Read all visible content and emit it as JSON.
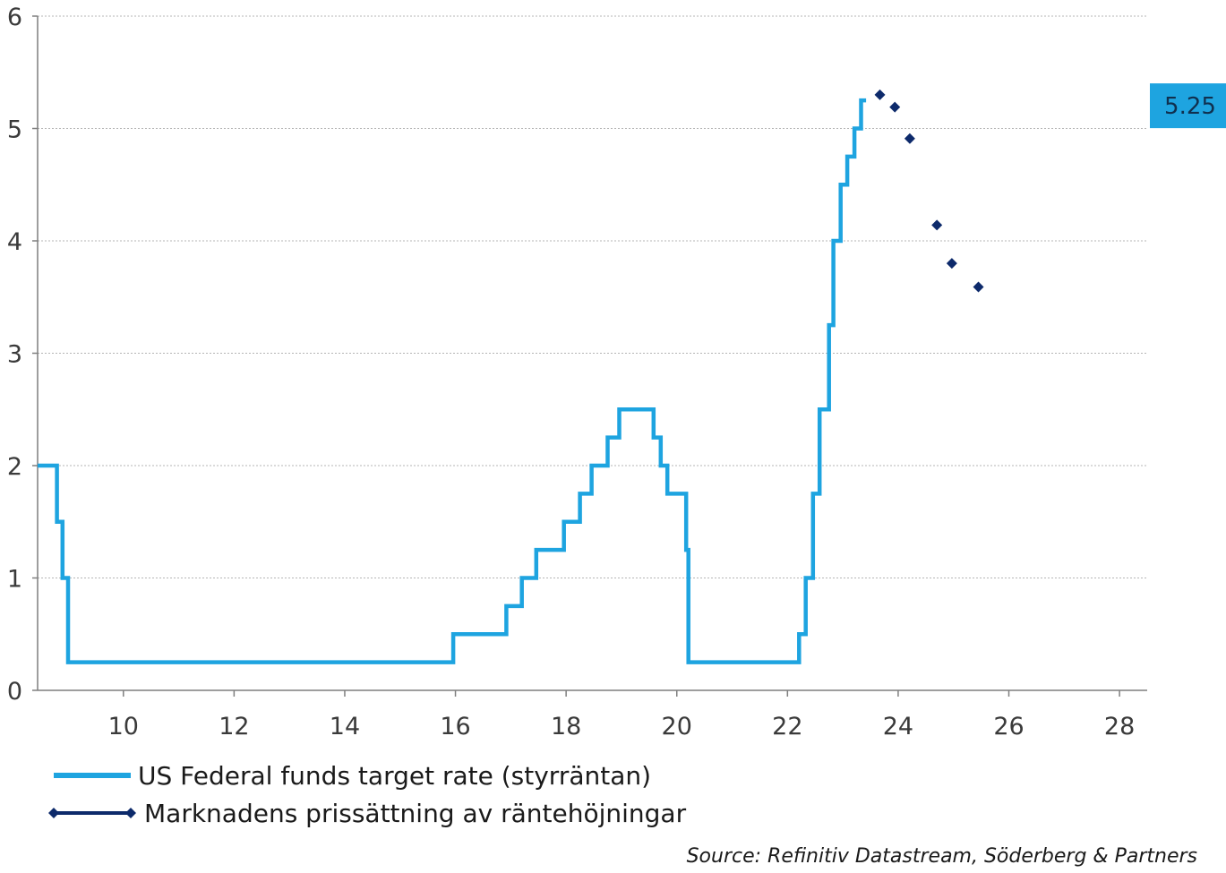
{
  "colors": {
    "rate": "#1ea4e0",
    "pricing": "#0d2a6b",
    "badge_bg": "#1ea4e0",
    "grid": "#b5b5b5",
    "axis": "#7f7f7f"
  },
  "chart_data": {
    "type": "line",
    "title": "",
    "xlabel": "",
    "ylabel": "",
    "xlim": [
      8.45,
      28.5
    ],
    "ylim": [
      0,
      6
    ],
    "x_ticks": [
      10,
      12,
      14,
      16,
      18,
      20,
      22,
      24,
      26,
      28
    ],
    "y_ticks": [
      0,
      1,
      2,
      3,
      4,
      5,
      6
    ],
    "x_tick_labels": [
      "10",
      "12",
      "14",
      "16",
      "18",
      "20",
      "22",
      "24",
      "26",
      "28"
    ],
    "y_tick_labels": [
      "0",
      "1",
      "2",
      "3",
      "4",
      "5",
      "6"
    ],
    "grid": "horizontal dotted",
    "legend_position": "bottom-left",
    "series": [
      {
        "name": "US Federal funds target rate (styrräntan)",
        "style": "step",
        "points": [
          [
            8.45,
            2.0
          ],
          [
            8.8,
            2.0
          ],
          [
            8.8,
            1.5
          ],
          [
            8.9,
            1.5
          ],
          [
            8.9,
            1.0
          ],
          [
            9.0,
            1.0
          ],
          [
            9.0,
            0.25
          ],
          [
            15.96,
            0.25
          ],
          [
            15.96,
            0.5
          ],
          [
            16.92,
            0.5
          ],
          [
            16.92,
            0.75
          ],
          [
            17.2,
            0.75
          ],
          [
            17.2,
            1.0
          ],
          [
            17.46,
            1.0
          ],
          [
            17.46,
            1.25
          ],
          [
            17.96,
            1.25
          ],
          [
            17.96,
            1.5
          ],
          [
            18.25,
            1.5
          ],
          [
            18.25,
            1.75
          ],
          [
            18.46,
            1.75
          ],
          [
            18.46,
            2.0
          ],
          [
            18.75,
            2.0
          ],
          [
            18.75,
            2.25
          ],
          [
            18.96,
            2.25
          ],
          [
            18.96,
            2.5
          ],
          [
            19.58,
            2.5
          ],
          [
            19.58,
            2.25
          ],
          [
            19.71,
            2.25
          ],
          [
            19.71,
            2.0
          ],
          [
            19.83,
            2.0
          ],
          [
            19.83,
            1.75
          ],
          [
            20.17,
            1.75
          ],
          [
            20.17,
            1.25
          ],
          [
            20.21,
            1.25
          ],
          [
            20.21,
            0.25
          ],
          [
            22.21,
            0.25
          ],
          [
            22.21,
            0.5
          ],
          [
            22.33,
            0.5
          ],
          [
            22.33,
            1.0
          ],
          [
            22.46,
            1.0
          ],
          [
            22.46,
            1.75
          ],
          [
            22.58,
            1.75
          ],
          [
            22.58,
            2.5
          ],
          [
            22.75,
            2.5
          ],
          [
            22.75,
            3.25
          ],
          [
            22.83,
            3.25
          ],
          [
            22.83,
            4.0
          ],
          [
            22.96,
            4.0
          ],
          [
            22.96,
            4.5
          ],
          [
            23.08,
            4.5
          ],
          [
            23.08,
            4.75
          ],
          [
            23.21,
            4.75
          ],
          [
            23.21,
            5.0
          ],
          [
            23.33,
            5.0
          ],
          [
            23.33,
            5.25
          ],
          [
            23.42,
            5.25
          ]
        ]
      },
      {
        "name": "Marknadens prissättning av räntehöjningar",
        "style": "markers",
        "points": [
          [
            23.67,
            5.3
          ],
          [
            23.94,
            5.19
          ],
          [
            24.21,
            4.91
          ],
          [
            24.7,
            4.14
          ],
          [
            24.97,
            3.8
          ],
          [
            25.45,
            3.59
          ]
        ]
      }
    ],
    "annotations": [
      {
        "text": "5.25",
        "y": 5.25
      }
    ],
    "source": "Source: Refinitiv Datastream, Söderberg & Partners"
  }
}
